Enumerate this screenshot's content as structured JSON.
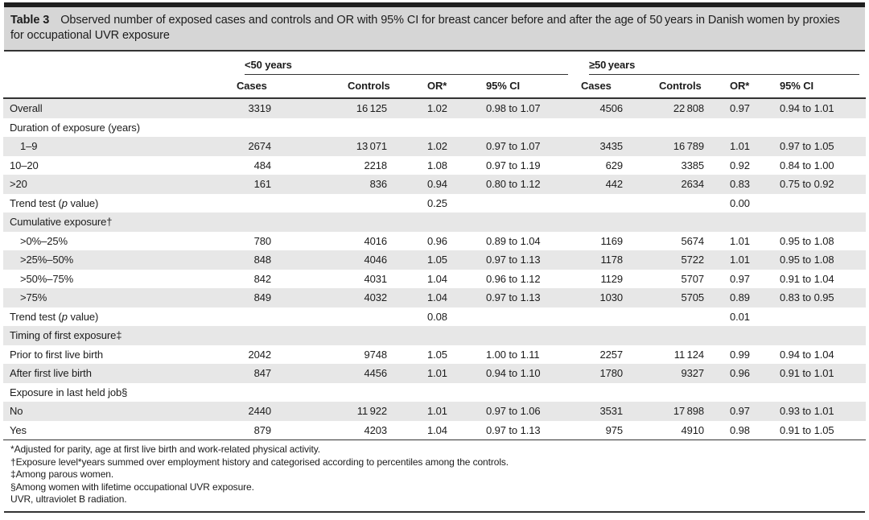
{
  "colors": {
    "top_bar": "#1f1f1f",
    "title_bar_bg": "#d6d6d6",
    "row_shade": "#e7e7e7",
    "rule": "#333333",
    "text": "#1c1c1c"
  },
  "title": {
    "label": "Table 3",
    "text": "Observed number of exposed cases and controls and OR with 95% CI for breast cancer before and after the age of 50 years in Danish women by proxies for occupational UVR exposure"
  },
  "table": {
    "groups": [
      {
        "label": "<50 years"
      },
      {
        "label": "≥50 years"
      }
    ],
    "columns": [
      "Cases",
      "Controls",
      "OR*",
      "95% CI",
      "Cases",
      "Controls",
      "OR*",
      "95% CI"
    ],
    "rows": [
      {
        "type": "data",
        "label": "Overall",
        "cells": [
          "3319",
          "16 125",
          "1.02",
          "0.98 to 1.07",
          "4506",
          "22 808",
          "0.97",
          "0.94 to 1.01"
        ]
      },
      {
        "type": "section",
        "label": "Duration of exposure (years)"
      },
      {
        "type": "data",
        "indent": true,
        "label": "1–9",
        "cells": [
          "2674",
          "13 071",
          "1.02",
          "0.97 to 1.07",
          "3435",
          "16 789",
          "1.01",
          "0.97 to 1.05"
        ]
      },
      {
        "type": "data",
        "label": "10–20",
        "cells": [
          "484",
          "2218",
          "1.08",
          "0.97 to 1.19",
          "629",
          "3385",
          "0.92",
          "0.84 to 1.00"
        ]
      },
      {
        "type": "data",
        "label": ">20",
        "cells": [
          "161",
          "836",
          "0.94",
          "0.80 to 1.12",
          "442",
          "2634",
          "0.83",
          "0.75 to 0.92"
        ]
      },
      {
        "type": "data",
        "label_pre": "Trend test (",
        "label_em": "p",
        "label_post": " value)",
        "cells": [
          "",
          "",
          "0.25",
          "",
          "",
          "",
          "0.00",
          ""
        ]
      },
      {
        "type": "section",
        "label": "Cumulative exposure†"
      },
      {
        "type": "data",
        "indent": true,
        "label": ">0%–25%",
        "cells": [
          "780",
          "4016",
          "0.96",
          "0.89 to 1.04",
          "1169",
          "5674",
          "1.01",
          "0.95 to 1.08"
        ]
      },
      {
        "type": "data",
        "indent": true,
        "label": ">25%–50%",
        "cells": [
          "848",
          "4046",
          "1.05",
          "0.97 to 1.13",
          "1178",
          "5722",
          "1.01",
          "0.95 to 1.08"
        ]
      },
      {
        "type": "data",
        "indent": true,
        "label": ">50%–75%",
        "cells": [
          "842",
          "4031",
          "1.04",
          "0.96 to 1.12",
          "1129",
          "5707",
          "0.97",
          "0.91 to 1.04"
        ]
      },
      {
        "type": "data",
        "indent": true,
        "label": ">75%",
        "cells": [
          "849",
          "4032",
          "1.04",
          "0.97 to 1.13",
          "1030",
          "5705",
          "0.89",
          "0.83 to 0.95"
        ]
      },
      {
        "type": "data",
        "label_pre": "Trend test (",
        "label_em": "p",
        "label_post": " value)",
        "cells": [
          "",
          "",
          "0.08",
          "",
          "",
          "",
          "0.01",
          ""
        ]
      },
      {
        "type": "section",
        "label": "Timing of first exposure‡"
      },
      {
        "type": "data",
        "label": "Prior to first live birth",
        "cells": [
          "2042",
          "9748",
          "1.05",
          "1.00 to 1.11",
          "2257",
          "11 124",
          "0.99",
          "0.94 to 1.04"
        ]
      },
      {
        "type": "data",
        "label": "After first live birth",
        "cells": [
          "847",
          "4456",
          "1.01",
          "0.94 to 1.10",
          "1780",
          "9327",
          "0.96",
          "0.91 to 1.01"
        ]
      },
      {
        "type": "section",
        "label": "Exposure in last held job§"
      },
      {
        "type": "data",
        "label": "No",
        "cells": [
          "2440",
          "11 922",
          "1.01",
          "0.97 to 1.06",
          "3531",
          "17 898",
          "0.97",
          "0.93 to 1.01"
        ]
      },
      {
        "type": "data",
        "label": "Yes",
        "cells": [
          "879",
          "4203",
          "1.04",
          "0.97 to 1.13",
          "975",
          "4910",
          "0.98",
          "0.91 to 1.05"
        ]
      }
    ]
  },
  "footnotes": [
    "*Adjusted for parity, age at first live birth and work-related physical activity.",
    "†Exposure level*years summed over employment history and categorised according to percentiles among the controls.",
    "‡Among parous women.",
    "§Among women with lifetime occupational UVR exposure.",
    "UVR, ultraviolet B radiation."
  ]
}
